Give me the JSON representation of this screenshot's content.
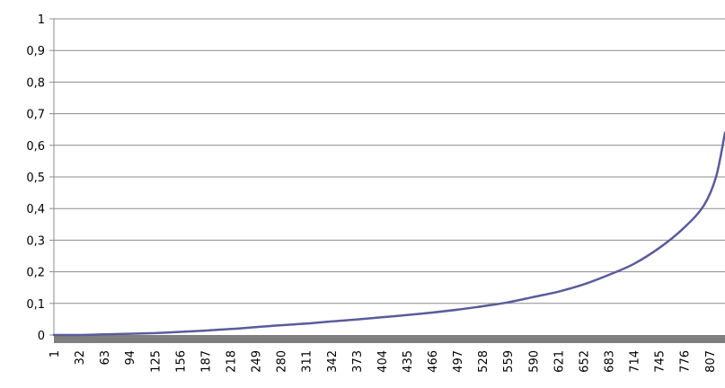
{
  "chart_data": {
    "type": "line",
    "title": "",
    "xlabel": "",
    "ylabel": "",
    "ylim": [
      0,
      1
    ],
    "y_ticks": [
      "0",
      "0,1",
      "0,2",
      "0,3",
      "0,4",
      "0,5",
      "0,6",
      "0,7",
      "0,8",
      "0,9",
      "1"
    ],
    "x_tick_labels": [
      "1",
      "32",
      "63",
      "94",
      "125",
      "156",
      "187",
      "218",
      "249",
      "280",
      "311",
      "342",
      "373",
      "404",
      "435",
      "466",
      "497",
      "528",
      "559",
      "590",
      "621",
      "652",
      "683",
      "714",
      "745",
      "776",
      "807"
    ],
    "xlim": [
      1,
      826
    ],
    "grid": true,
    "legend": "none",
    "series": [
      {
        "color": "#5b5b9b",
        "x": [
          1,
          32,
          63,
          94,
          125,
          156,
          187,
          218,
          249,
          280,
          311,
          342,
          373,
          404,
          435,
          466,
          497,
          528,
          559,
          590,
          621,
          652,
          683,
          714,
          745,
          776,
          800,
          815,
          826
        ],
        "y": [
          0.0,
          0.0,
          0.002,
          0.004,
          0.006,
          0.01,
          0.014,
          0.019,
          0.025,
          0.031,
          0.036,
          0.043,
          0.049,
          0.056,
          0.063,
          0.071,
          0.08,
          0.091,
          0.103,
          0.12,
          0.137,
          0.16,
          0.19,
          0.225,
          0.275,
          0.34,
          0.41,
          0.5,
          0.64
        ]
      }
    ]
  }
}
